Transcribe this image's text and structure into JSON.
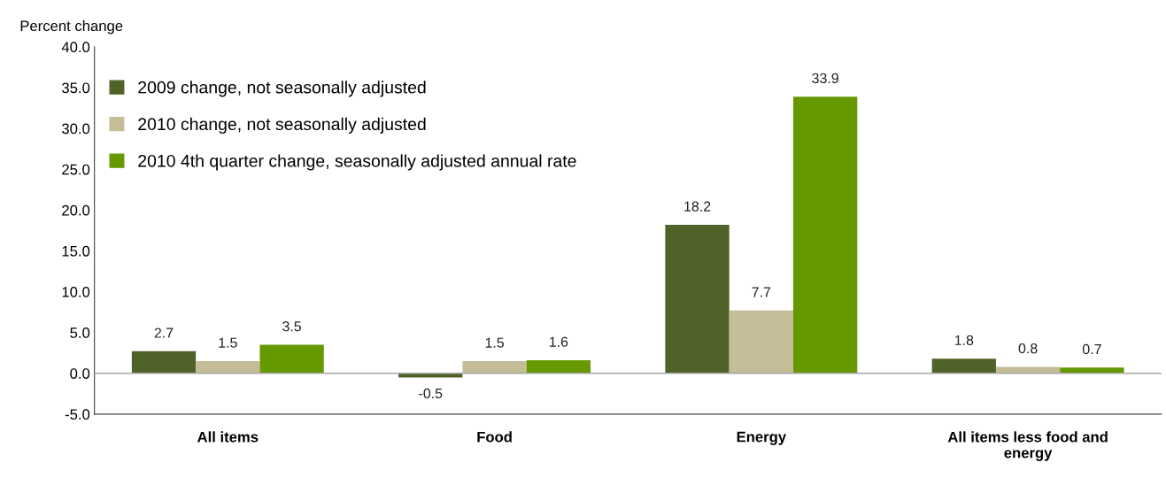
{
  "chart_data": {
    "type": "bar",
    "ylabel": "Percent change",
    "categories": [
      "All items",
      "Food",
      "Energy",
      "All items less food and\nenergy"
    ],
    "series": [
      {
        "name": "2009 change, not seasonally adjusted",
        "color": "#4f6228",
        "values": [
          2.7,
          -0.5,
          18.2,
          1.8
        ]
      },
      {
        "name": "2010 change, not seasonally adjusted",
        "color": "#c4bd97",
        "values": [
          1.5,
          1.5,
          7.7,
          0.8
        ]
      },
      {
        "name": "2010 4th quarter change, seasonally adjusted annual rate",
        "color": "#669900",
        "values": [
          3.5,
          1.6,
          33.9,
          0.7
        ]
      }
    ],
    "ylim": [
      -5,
      40
    ],
    "yticks": [
      {
        "value": -5,
        "label": "-5.0"
      },
      {
        "value": 0,
        "label": "0.0"
      },
      {
        "value": 5,
        "label": "5.0"
      },
      {
        "value": 10,
        "label": "10.0"
      },
      {
        "value": 15,
        "label": "15.0"
      },
      {
        "value": 20,
        "label": "20.0"
      },
      {
        "value": 25,
        "label": "25.0"
      },
      {
        "value": 30,
        "label": "30.0"
      },
      {
        "value": 35,
        "label": "35.0"
      },
      {
        "value": 40,
        "label": "40.0"
      }
    ],
    "ref_lines": [
      {
        "axis": "y",
        "value": 0,
        "color": "#a6a6a6"
      }
    ],
    "data_labels": true,
    "grid": false,
    "legend": "top left"
  }
}
